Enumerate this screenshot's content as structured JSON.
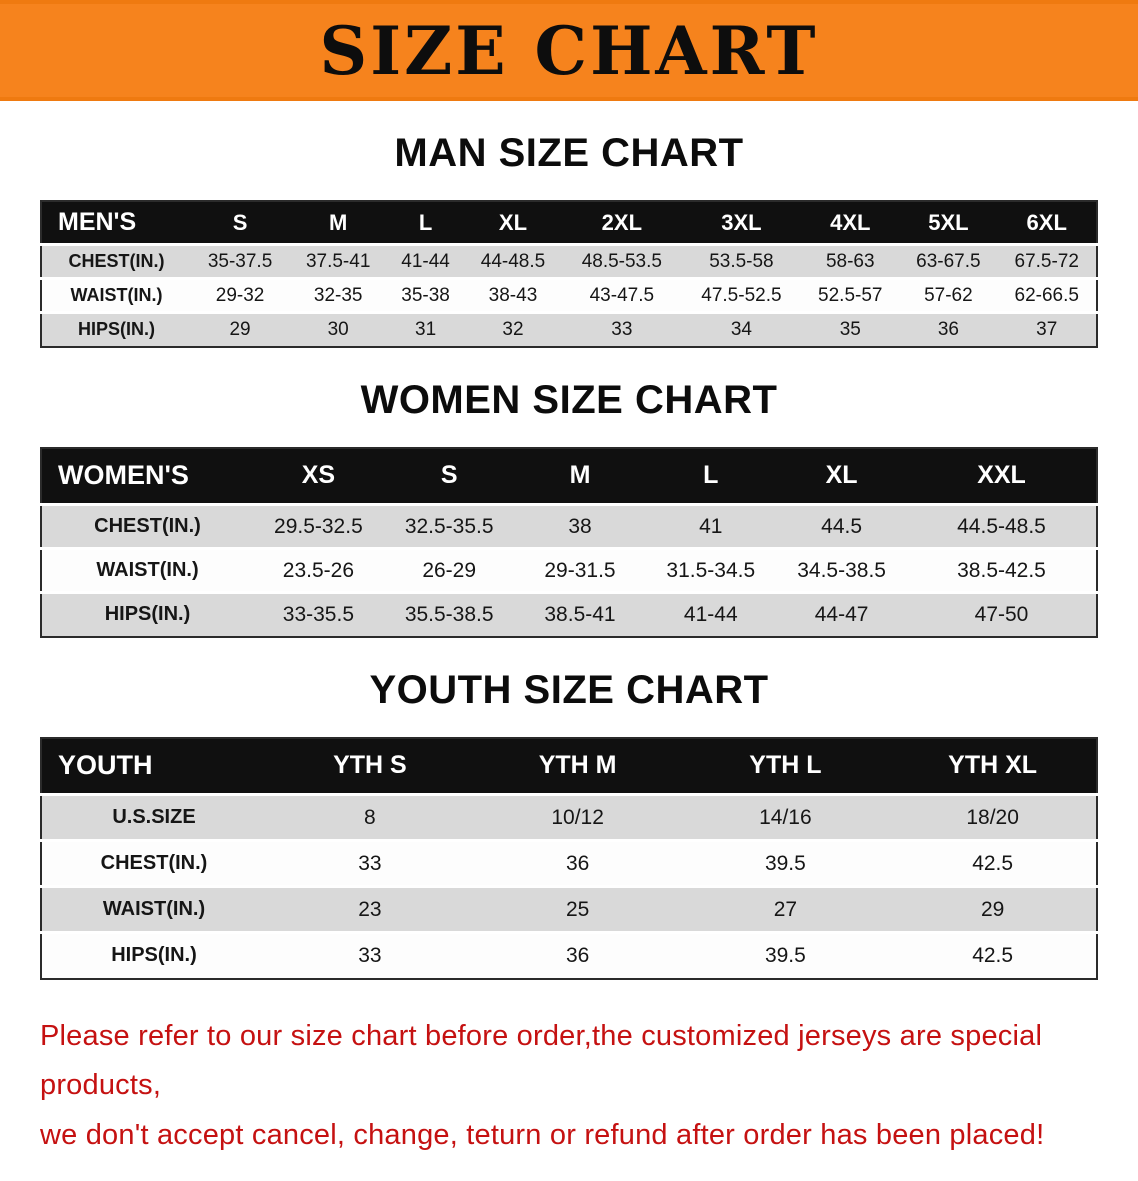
{
  "banner": {
    "title": "SIZE CHART"
  },
  "colors": {
    "banner_bg": "#f6831d",
    "header_bg": "#101010",
    "row_gray": "#d9d9d9",
    "note_red": "#c51111"
  },
  "sections": [
    {
      "id": "men",
      "heading": "MAN SIZE CHART",
      "header_label": "MEN'S",
      "columns": [
        "S",
        "M",
        "L",
        "XL",
        "2XL",
        "3XL",
        "4XL",
        "5XL",
        "6XL"
      ],
      "rows": [
        {
          "label": "CHEST(IN.)",
          "values": [
            "35-37.5",
            "37.5-41",
            "41-44",
            "44-48.5",
            "48.5-53.5",
            "53.5-58",
            "58-63",
            "63-67.5",
            "67.5-72"
          ]
        },
        {
          "label": "WAIST(IN.)",
          "values": [
            "29-32",
            "32-35",
            "35-38",
            "38-43",
            "43-47.5",
            "47.5-52.5",
            "52.5-57",
            "57-62",
            "62-66.5"
          ]
        },
        {
          "label": "HIPS(IN.)",
          "values": [
            "29",
            "30",
            "31",
            "32",
            "33",
            "34",
            "35",
            "36",
            "37"
          ]
        }
      ]
    },
    {
      "id": "women",
      "heading": "WOMEN SIZE CHART",
      "header_label": "WOMEN'S",
      "columns": [
        "XS",
        "S",
        "M",
        "L",
        "XL",
        "XXL"
      ],
      "rows": [
        {
          "label": "CHEST(IN.)",
          "values": [
            "29.5-32.5",
            "32.5-35.5",
            "38",
            "41",
            "44.5",
            "44.5-48.5"
          ]
        },
        {
          "label": "WAIST(IN.)",
          "values": [
            "23.5-26",
            "26-29",
            "29-31.5",
            "31.5-34.5",
            "34.5-38.5",
            "38.5-42.5"
          ]
        },
        {
          "label": "HIPS(IN.)",
          "values": [
            "33-35.5",
            "35.5-38.5",
            "38.5-41",
            "41-44",
            "44-47",
            "47-50"
          ]
        }
      ]
    },
    {
      "id": "youth",
      "heading": "YOUTH SIZE CHART",
      "header_label": "YOUTH",
      "columns": [
        "YTH S",
        "YTH M",
        "YTH L",
        "YTH XL"
      ],
      "rows": [
        {
          "label": "U.S.SIZE",
          "values": [
            "8",
            "10/12",
            "14/16",
            "18/20"
          ]
        },
        {
          "label": "CHEST(IN.)",
          "values": [
            "33",
            "36",
            "39.5",
            "42.5"
          ]
        },
        {
          "label": "WAIST(IN.)",
          "values": [
            "23",
            "25",
            "27",
            "29"
          ]
        },
        {
          "label": "HIPS(IN.)",
          "values": [
            "33",
            "36",
            "39.5",
            "42.5"
          ]
        }
      ]
    }
  ],
  "disclaimer": {
    "lines": [
      "Please refer to our size chart before order,the customized jerseys are special products,",
      "we don't accept cancel, change, teturn or refund after order has been placed!"
    ]
  }
}
